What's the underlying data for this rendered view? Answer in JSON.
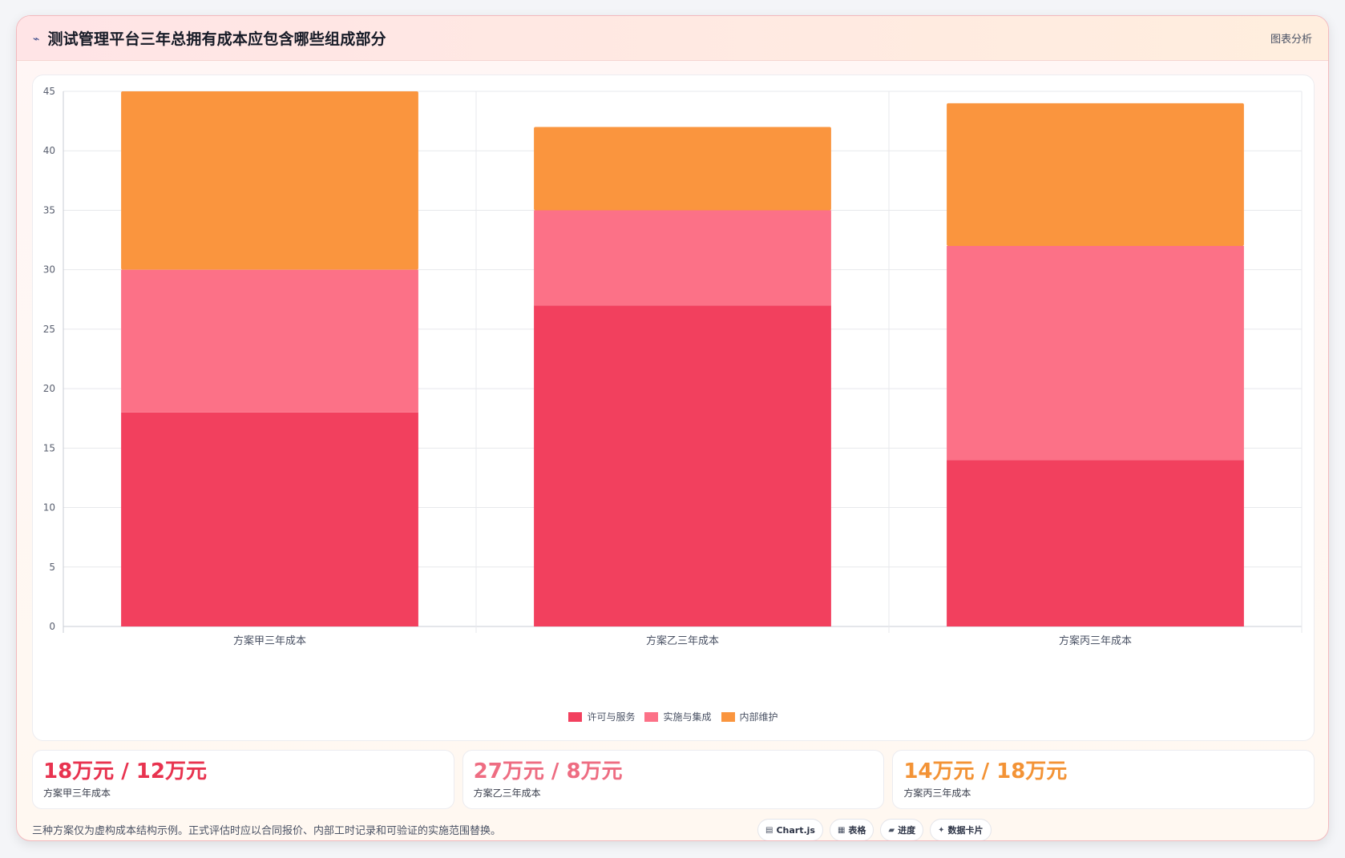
{
  "header": {
    "title": "测试管理平台三年总拥有成本应包含哪些组成部分",
    "tag": "图表分析"
  },
  "chart_data": {
    "type": "bar",
    "stacked": true,
    "categories": [
      "方案甲三年成本",
      "方案乙三年成本",
      "方案丙三年成本"
    ],
    "series": [
      {
        "name": "许可与服务",
        "color": "#f2405e",
        "values": [
          18,
          27,
          14
        ]
      },
      {
        "name": "实施与集成",
        "color": "#fc7187",
        "values": [
          12,
          8,
          18
        ]
      },
      {
        "name": "内部维护",
        "color": "#fa953e",
        "values": [
          15,
          7,
          12
        ]
      }
    ],
    "ylim": [
      0,
      45
    ],
    "yticks": [
      0,
      5,
      10,
      15,
      20,
      25,
      30,
      35,
      40,
      45
    ],
    "grid": true,
    "legend": "bottom"
  },
  "stats": [
    {
      "value": "18万元 / 12万元",
      "label": "方案甲三年成本",
      "color": "#e8334f"
    },
    {
      "value": "27万元 / 8万元",
      "label": "方案乙三年成本",
      "color": "#ee6d82"
    },
    {
      "value": "14万元 / 18万元",
      "label": "方案丙三年成本",
      "color": "#f39336"
    }
  ],
  "footer": {
    "note": "三种方案仅为虚构成本结构示例。正式评估时应以合同报价、内部工时记录和可验证的实施范围替换。",
    "chips": [
      {
        "icon": "▤",
        "icon_name": "chart-icon",
        "label": "Chart.js"
      },
      {
        "icon": "▦",
        "icon_name": "table-icon",
        "label": "表格"
      },
      {
        "icon": "▰",
        "icon_name": "progress-icon",
        "label": "进度"
      },
      {
        "icon": "✦",
        "icon_name": "card-icon",
        "label": "数据卡片"
      }
    ]
  }
}
